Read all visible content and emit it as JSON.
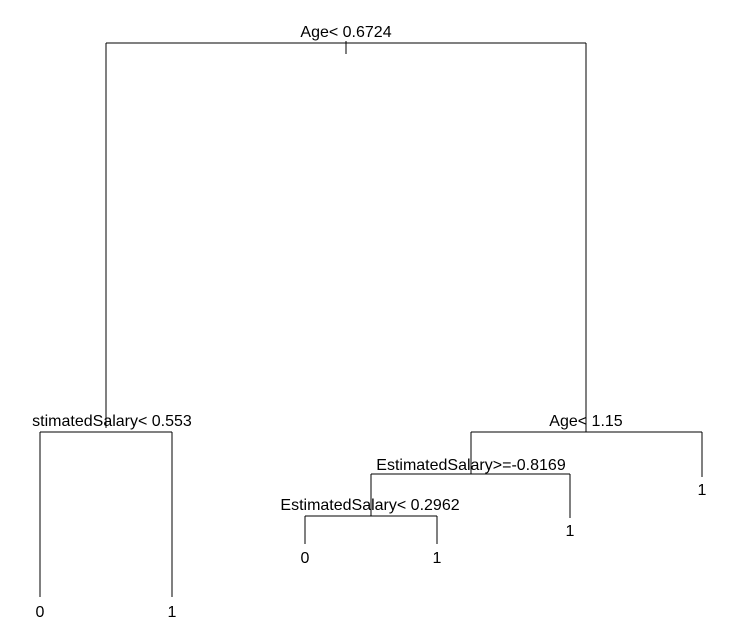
{
  "tree": {
    "nodes": [
      {
        "id": "root",
        "split": "Age< 0.6724"
      },
      {
        "id": "left",
        "split": "stimatedSalary< 0.553"
      },
      {
        "id": "right",
        "split": "Age< 1.15"
      },
      {
        "id": "right_l",
        "split": "EstimatedSalary>=-0.8169"
      },
      {
        "id": "rl_l",
        "split": "EstimatedSalary< 0.2962"
      }
    ],
    "leaves": [
      {
        "id": "leaf_left_l",
        "label": "0"
      },
      {
        "id": "leaf_left_r",
        "label": "1"
      },
      {
        "id": "leaf_rll_l",
        "label": "0"
      },
      {
        "id": "leaf_rll_r",
        "label": "1"
      },
      {
        "id": "leaf_rl_r",
        "label": "1"
      },
      {
        "id": "leaf_right_r",
        "label": "1"
      }
    ]
  }
}
